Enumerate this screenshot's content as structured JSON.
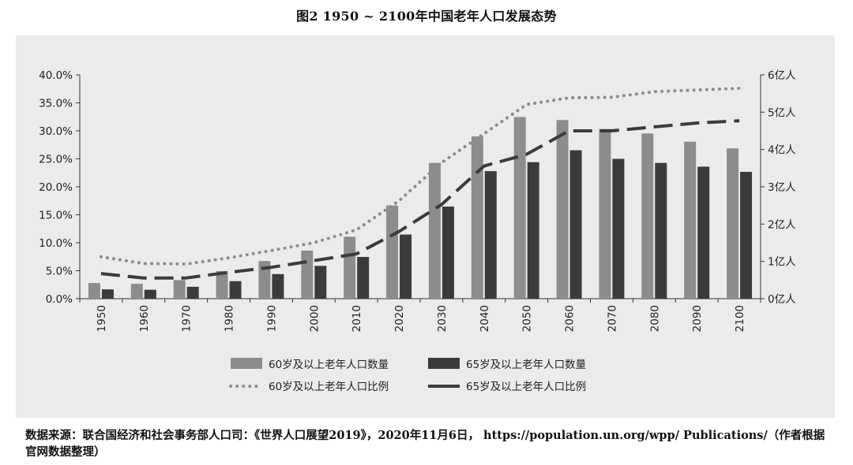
{
  "title": "图2 1950 ~ 2100年中国老年人口发展态势",
  "source_note": "数据来源：联合国经济和社会事务部人口司：《世界人口展望2019》，2020年11月6日， https://population.un.org/wpp/ Publications/（作者根据官网数据整理）",
  "chart_data": {
    "type": "bar",
    "categories": [
      "1950",
      "1960",
      "1970",
      "1980",
      "1990",
      "2000",
      "2010",
      "2020",
      "2030",
      "2040",
      "2050",
      "2060",
      "2070",
      "2080",
      "2090",
      "2100"
    ],
    "left_axis": {
      "ylim": [
        0,
        0.4
      ],
      "ticks": [
        "0.0%",
        "5.0%",
        "10.0%",
        "15.0%",
        "20.0%",
        "25.0%",
        "30.0%",
        "35.0%",
        "40.0%"
      ]
    },
    "right_axis": {
      "ylim": [
        0,
        6
      ],
      "ticks": [
        "0亿人",
        "1亿人",
        "2亿人",
        "3亿人",
        "4亿人",
        "5亿人",
        "6亿人"
      ]
    },
    "bar_series": [
      {
        "name": "60岁及以上老年人口数量",
        "axis": "right",
        "color": "#8c8c8c",
        "values": [
          0.42,
          0.4,
          0.5,
          0.74,
          1.01,
          1.29,
          1.66,
          2.5,
          3.64,
          4.35,
          4.87,
          4.79,
          4.55,
          4.43,
          4.21,
          4.03
        ]
      },
      {
        "name": "65岁及以上老年人口数量",
        "axis": "right",
        "color": "#3b3b3b",
        "values": [
          0.25,
          0.24,
          0.32,
          0.47,
          0.66,
          0.88,
          1.12,
          1.72,
          2.47,
          3.42,
          3.66,
          3.98,
          3.75,
          3.64,
          3.54,
          3.4
        ]
      }
    ],
    "line_series": [
      {
        "name": "60岁及以上老年人口比例",
        "axis": "left",
        "style": "dotted",
        "color": "#8c8c8c",
        "values": [
          0.075,
          0.063,
          0.062,
          0.073,
          0.086,
          0.1,
          0.123,
          0.175,
          0.243,
          0.295,
          0.347,
          0.359,
          0.36,
          0.37,
          0.373,
          0.376
        ]
      },
      {
        "name": "65岁及以上老年人口比例",
        "axis": "left",
        "style": "dashed",
        "color": "#3b3b3b",
        "values": [
          0.045,
          0.037,
          0.037,
          0.047,
          0.056,
          0.068,
          0.08,
          0.12,
          0.168,
          0.237,
          0.258,
          0.3,
          0.3,
          0.307,
          0.314,
          0.318
        ]
      }
    ]
  }
}
